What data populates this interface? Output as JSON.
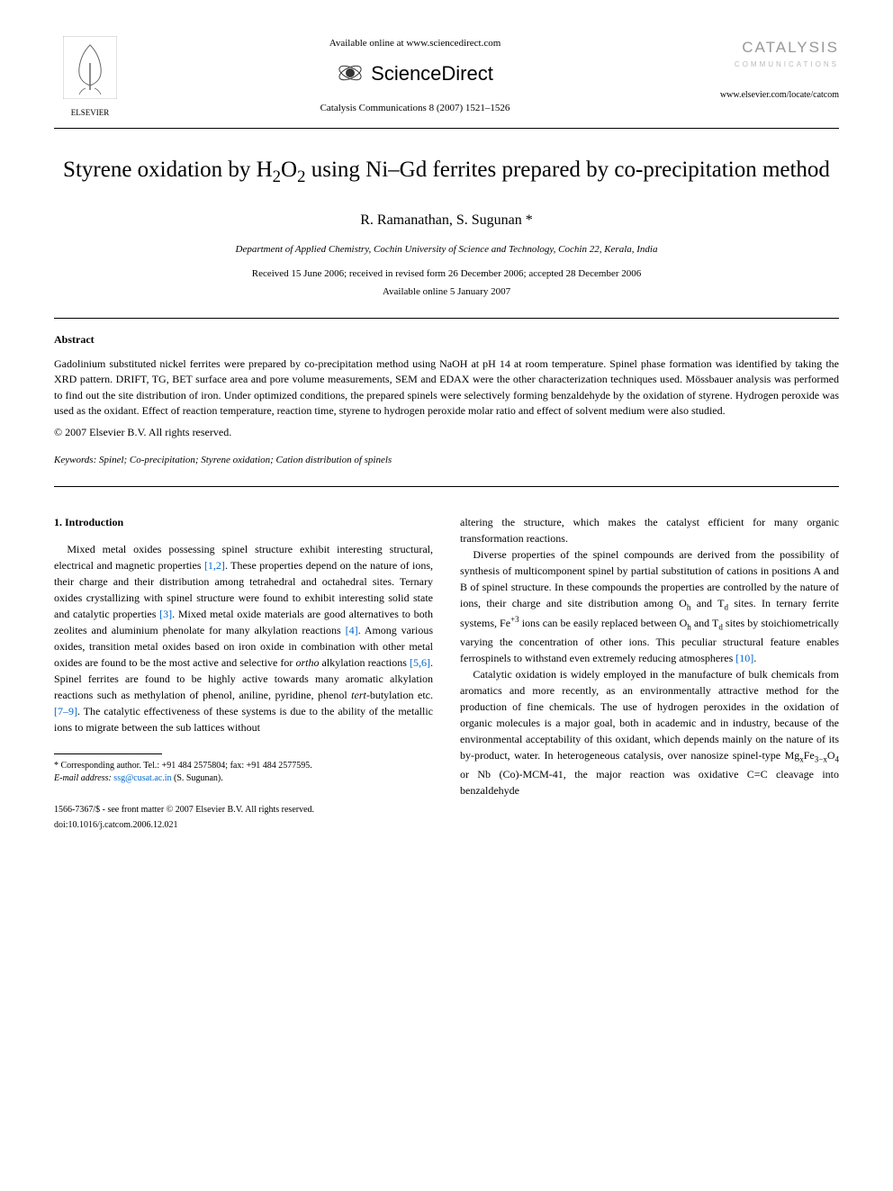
{
  "header": {
    "available_online": "Available online at www.sciencedirect.com",
    "sd_name": "ScienceDirect",
    "citation": "Catalysis Communications 8 (2007) 1521–1526",
    "publisher_name": "ELSEVIER",
    "journal_name": "CATALYSIS",
    "journal_subtitle": "COMMUNICATIONS",
    "journal_url": "www.elsevier.com/locate/catcom"
  },
  "article": {
    "title_html": "Styrene oxidation by H<sub>2</sub>O<sub>2</sub> using Ni–Gd ferrites prepared by co-precipitation method",
    "authors": "R. Ramanathan, S. Sugunan *",
    "affiliation": "Department of Applied Chemistry, Cochin University of Science and Technology, Cochin 22, Kerala, India",
    "received": "Received 15 June 2006; received in revised form 26 December 2006; accepted 28 December 2006",
    "available": "Available online 5 January 2007"
  },
  "abstract": {
    "heading": "Abstract",
    "text": "Gadolinium substituted nickel ferrites were prepared by co-precipitation method using NaOH at pH 14 at room temperature. Spinel phase formation was identified by taking the XRD pattern. DRIFT, TG, BET surface area and pore volume measurements, SEM and EDAX were the other characterization techniques used. Mössbauer analysis was performed to find out the site distribution of iron. Under optimized conditions, the prepared spinels were selectively forming benzaldehyde by the oxidation of styrene. Hydrogen peroxide was used as the oxidant. Effect of reaction temperature, reaction time, styrene to hydrogen peroxide molar ratio and effect of solvent medium were also studied.",
    "copyright": "© 2007 Elsevier B.V. All rights reserved."
  },
  "keywords": {
    "label": "Keywords:",
    "text": "Spinel; Co-precipitation; Styrene oxidation; Cation distribution of spinels"
  },
  "intro": {
    "heading": "1. Introduction",
    "col1_p1_html": "Mixed metal oxides possessing spinel structure exhibit interesting structural, electrical and magnetic properties <span class=\"ref-link\">[1,2]</span>. These properties depend on the nature of ions, their charge and their distribution among tetrahedral and octahedral sites. Ternary oxides crystallizing with spinel structure were found to exhibit interesting solid state and catalytic properties <span class=\"ref-link\">[3]</span>. Mixed metal oxide materials are good alternatives to both zeolites and aluminium phenolate for many alkylation reactions <span class=\"ref-link\">[4]</span>. Among various oxides, transition metal oxides based on iron oxide in combination with other metal oxides are found to be the most active and selective for <i>ortho</i> alkylation reactions <span class=\"ref-link\">[5,6]</span>. Spinel ferrites are found to be highly active towards many aromatic alkylation reactions such as methylation of phenol, aniline, pyridine, phenol <i>tert</i>-butylation etc. <span class=\"ref-link\">[7–9]</span>. The catalytic effectiveness of these systems is due to the ability of the metallic ions to migrate between the sub lattices without",
    "col2_p1": "altering the structure, which makes the catalyst efficient for many organic transformation reactions.",
    "col2_p2_html": "Diverse properties of the spinel compounds are derived from the possibility of synthesis of multicomponent spinel by partial substitution of cations in positions A and B of spinel structure. In these compounds the properties are controlled by the nature of ions, their charge and site distribution among O<sub>h</sub> and T<sub>d</sub> sites. In ternary ferrite systems, Fe<sup>+3</sup> ions can be easily replaced between O<sub>h</sub> and T<sub>d</sub> sites by stoichiometrically varying the concentration of other ions. This peculiar structural feature enables ferrospinels to withstand even extremely reducing atmospheres <span class=\"ref-link\">[10]</span>.",
    "col2_p3_html": "Catalytic oxidation is widely employed in the manufacture of bulk chemicals from aromatics and more recently, as an environmentally attractive method for the production of fine chemicals. The use of hydrogen peroxides in the oxidation of organic molecules is a major goal, both in academic and in industry, because of the environmental acceptability of this oxidant, which depends mainly on the nature of its by-product, water. In heterogeneous catalysis, over nanosize spinel-type Mg<sub>x</sub>Fe<sub>3−x</sub>O<sub>4</sub> or Nb (Co)-MCM-41, the major reaction was oxidative C=C cleavage into benzaldehyde"
  },
  "footnote": {
    "corresponding": "* Corresponding author. Tel.: +91 484 2575804; fax: +91 484 2577595.",
    "email_label": "E-mail address:",
    "email": "ssg@cusat.ac.in",
    "email_name": "(S. Sugunan)."
  },
  "footer": {
    "issn": "1566-7367/$ - see front matter © 2007 Elsevier B.V. All rights reserved.",
    "doi": "doi:10.1016/j.catcom.2006.12.021"
  },
  "colors": {
    "text": "#000000",
    "link": "#0066cc",
    "journal_gray": "#999999",
    "background": "#ffffff"
  }
}
